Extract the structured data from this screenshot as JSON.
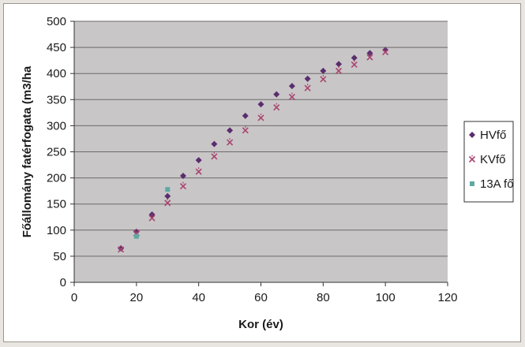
{
  "chart_data": {
    "type": "scatter",
    "xlabel": "Kor (év)",
    "ylabel": "Főállomány fatérfogata (m3/ha",
    "xlim": [
      0,
      120
    ],
    "ylim": [
      0,
      500
    ],
    "xticks": [
      0,
      20,
      40,
      60,
      80,
      100,
      120
    ],
    "yticks": [
      0,
      50,
      100,
      150,
      200,
      250,
      300,
      350,
      400,
      450,
      500
    ],
    "grid": "horizontal",
    "legend_position": "right",
    "plot_background": "#c9c6c7",
    "series": [
      {
        "name": "HVfő",
        "marker": "diamond",
        "color": "#5a2d6e",
        "x": [
          15,
          20,
          25,
          30,
          35,
          40,
          45,
          50,
          55,
          60,
          65,
          70,
          75,
          80,
          85,
          90,
          95,
          100
        ],
        "y": [
          65,
          97,
          130,
          165,
          204,
          234,
          265,
          291,
          319,
          341,
          360,
          376,
          390,
          405,
          418,
          430,
          439,
          445
        ]
      },
      {
        "name": "KVfő",
        "marker": "x",
        "color": "#a8456f",
        "x": [
          15,
          20,
          25,
          30,
          35,
          40,
          45,
          50,
          55,
          60,
          65,
          70,
          75,
          80,
          85,
          90,
          95,
          100
        ],
        "y": [
          63,
          94,
          123,
          152,
          184,
          212,
          241,
          268,
          291,
          315,
          335,
          355,
          372,
          389,
          405,
          417,
          431,
          441
        ]
      },
      {
        "name": "13A fő",
        "marker": "square",
        "color": "#5fa9a4",
        "x": [
          20,
          30
        ],
        "y": [
          88,
          178
        ]
      }
    ]
  }
}
